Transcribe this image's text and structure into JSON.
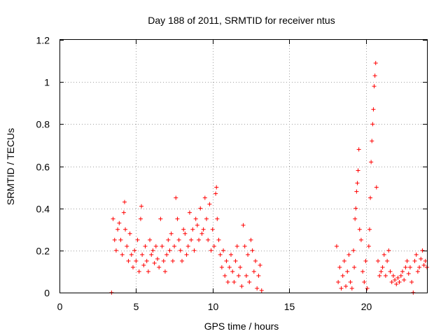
{
  "chart_data": {
    "type": "scatter",
    "title": "Day 188 of 2011, SRMTID for receiver ntus",
    "xlabel": "GPS time / hours",
    "ylabel": "SRMTID / TECUs",
    "xlim": [
      0,
      24
    ],
    "ylim": [
      0,
      1.2
    ],
    "xticks": [
      0,
      5,
      10,
      15,
      20
    ],
    "xtick_labels": [
      "0",
      "5",
      "10",
      "15",
      "20"
    ],
    "yticks": [
      0,
      0.2,
      0.4,
      0.6,
      0.8,
      1.0,
      1.2
    ],
    "ytick_labels": [
      "0",
      "0.2",
      "0.4",
      "0.6",
      "0.8",
      "1",
      "1.2"
    ],
    "grid": true,
    "marker": "plus",
    "color": "#ff0000",
    "series": [
      {
        "name": "SRMTID",
        "points": [
          [
            3.4,
            0.0
          ],
          [
            23.1,
            0.0
          ],
          [
            3.5,
            0.35
          ],
          [
            3.6,
            0.25
          ],
          [
            3.7,
            0.2
          ],
          [
            3.8,
            0.3
          ],
          [
            3.9,
            0.33
          ],
          [
            4.0,
            0.25
          ],
          [
            4.1,
            0.18
          ],
          [
            4.2,
            0.38
          ],
          [
            4.25,
            0.43
          ],
          [
            4.3,
            0.3
          ],
          [
            4.4,
            0.22
          ],
          [
            4.5,
            0.15
          ],
          [
            4.6,
            0.28
          ],
          [
            4.7,
            0.18
          ],
          [
            4.8,
            0.12
          ],
          [
            4.9,
            0.2
          ],
          [
            5.0,
            0.15
          ],
          [
            5.1,
            0.25
          ],
          [
            5.2,
            0.1
          ],
          [
            5.3,
            0.35
          ],
          [
            5.35,
            0.41
          ],
          [
            5.4,
            0.18
          ],
          [
            5.5,
            0.13
          ],
          [
            5.6,
            0.22
          ],
          [
            5.7,
            0.15
          ],
          [
            5.8,
            0.1
          ],
          [
            5.9,
            0.25
          ],
          [
            6.0,
            0.18
          ],
          [
            6.1,
            0.2
          ],
          [
            6.2,
            0.14
          ],
          [
            6.3,
            0.22
          ],
          [
            6.4,
            0.16
          ],
          [
            6.5,
            0.12
          ],
          [
            6.6,
            0.35
          ],
          [
            6.7,
            0.22
          ],
          [
            6.8,
            0.15
          ],
          [
            6.9,
            0.1
          ],
          [
            7.0,
            0.18
          ],
          [
            7.1,
            0.25
          ],
          [
            7.2,
            0.2
          ],
          [
            7.3,
            0.28
          ],
          [
            7.4,
            0.15
          ],
          [
            7.5,
            0.22
          ],
          [
            7.6,
            0.45
          ],
          [
            7.7,
            0.35
          ],
          [
            7.8,
            0.25
          ],
          [
            7.9,
            0.2
          ],
          [
            8.0,
            0.15
          ],
          [
            8.1,
            0.3
          ],
          [
            8.2,
            0.28
          ],
          [
            8.3,
            0.18
          ],
          [
            8.4,
            0.22
          ],
          [
            8.5,
            0.38
          ],
          [
            8.6,
            0.25
          ],
          [
            8.7,
            0.3
          ],
          [
            8.8,
            0.2
          ],
          [
            8.9,
            0.35
          ],
          [
            9.0,
            0.32
          ],
          [
            9.1,
            0.25
          ],
          [
            9.2,
            0.4
          ],
          [
            9.3,
            0.28
          ],
          [
            9.4,
            0.3
          ],
          [
            9.5,
            0.45
          ],
          [
            9.6,
            0.35
          ],
          [
            9.7,
            0.25
          ],
          [
            9.8,
            0.42
          ],
          [
            9.9,
            0.2
          ],
          [
            10.0,
            0.3
          ],
          [
            10.1,
            0.22
          ],
          [
            10.2,
            0.47
          ],
          [
            10.25,
            0.5
          ],
          [
            10.3,
            0.35
          ],
          [
            10.4,
            0.25
          ],
          [
            10.5,
            0.18
          ],
          [
            10.6,
            0.12
          ],
          [
            10.7,
            0.2
          ],
          [
            10.8,
            0.08
          ],
          [
            10.9,
            0.15
          ],
          [
            11.0,
            0.05
          ],
          [
            11.1,
            0.12
          ],
          [
            11.2,
            0.18
          ],
          [
            11.3,
            0.1
          ],
          [
            11.4,
            0.05
          ],
          [
            11.5,
            0.15
          ],
          [
            11.6,
            0.22
          ],
          [
            11.7,
            0.08
          ],
          [
            11.8,
            0.12
          ],
          [
            11.9,
            0.03
          ],
          [
            12.0,
            0.32
          ],
          [
            12.1,
            0.22
          ],
          [
            12.2,
            0.08
          ],
          [
            12.3,
            0.18
          ],
          [
            12.4,
            0.05
          ],
          [
            12.5,
            0.25
          ],
          [
            12.6,
            0.2
          ],
          [
            12.7,
            0.1
          ],
          [
            12.8,
            0.15
          ],
          [
            12.9,
            0.02
          ],
          [
            13.0,
            0.08
          ],
          [
            13.1,
            0.13
          ],
          [
            13.2,
            0.01
          ],
          [
            18.1,
            0.22
          ],
          [
            18.2,
            0.05
          ],
          [
            18.3,
            0.12
          ],
          [
            18.4,
            0.02
          ],
          [
            18.5,
            0.08
          ],
          [
            18.6,
            0.15
          ],
          [
            18.7,
            0.03
          ],
          [
            18.8,
            0.1
          ],
          [
            18.9,
            0.18
          ],
          [
            19.0,
            0.05
          ],
          [
            19.1,
            0.02
          ],
          [
            19.2,
            0.2
          ],
          [
            19.25,
            0.12
          ],
          [
            19.3,
            0.35
          ],
          [
            19.35,
            0.4
          ],
          [
            19.4,
            0.48
          ],
          [
            19.45,
            0.52
          ],
          [
            19.5,
            0.58
          ],
          [
            19.55,
            0.68
          ],
          [
            19.6,
            0.3
          ],
          [
            19.7,
            0.25
          ],
          [
            19.8,
            0.1
          ],
          [
            19.9,
            0.05
          ],
          [
            20.0,
            0.15
          ],
          [
            20.1,
            0.02
          ],
          [
            20.2,
            0.22
          ],
          [
            20.25,
            0.3
          ],
          [
            20.3,
            0.45
          ],
          [
            20.35,
            0.62
          ],
          [
            20.4,
            0.72
          ],
          [
            20.45,
            0.8
          ],
          [
            20.5,
            0.87
          ],
          [
            20.55,
            0.98
          ],
          [
            20.6,
            1.03
          ],
          [
            20.65,
            1.09
          ],
          [
            20.7,
            0.5
          ],
          [
            20.8,
            0.15
          ],
          [
            20.9,
            0.08
          ],
          [
            21.0,
            0.1
          ],
          [
            21.1,
            0.12
          ],
          [
            21.2,
            0.18
          ],
          [
            21.3,
            0.08
          ],
          [
            21.4,
            0.15
          ],
          [
            21.5,
            0.2
          ],
          [
            21.6,
            0.1
          ],
          [
            21.7,
            0.05
          ],
          [
            21.8,
            0.08
          ],
          [
            21.9,
            0.06
          ],
          [
            22.0,
            0.04
          ],
          [
            22.1,
            0.07
          ],
          [
            22.2,
            0.05
          ],
          [
            22.3,
            0.08
          ],
          [
            22.4,
            0.1
          ],
          [
            22.5,
            0.06
          ],
          [
            22.6,
            0.12
          ],
          [
            22.7,
            0.15
          ],
          [
            22.8,
            0.09
          ],
          [
            22.9,
            0.12
          ],
          [
            23.0,
            0.05
          ],
          [
            23.2,
            0.15
          ],
          [
            23.3,
            0.18
          ],
          [
            23.4,
            0.1
          ],
          [
            23.5,
            0.12
          ],
          [
            23.6,
            0.16
          ],
          [
            23.7,
            0.2
          ],
          [
            23.8,
            0.13
          ],
          [
            23.9,
            0.15
          ],
          [
            24.0,
            0.12
          ]
        ]
      }
    ]
  }
}
